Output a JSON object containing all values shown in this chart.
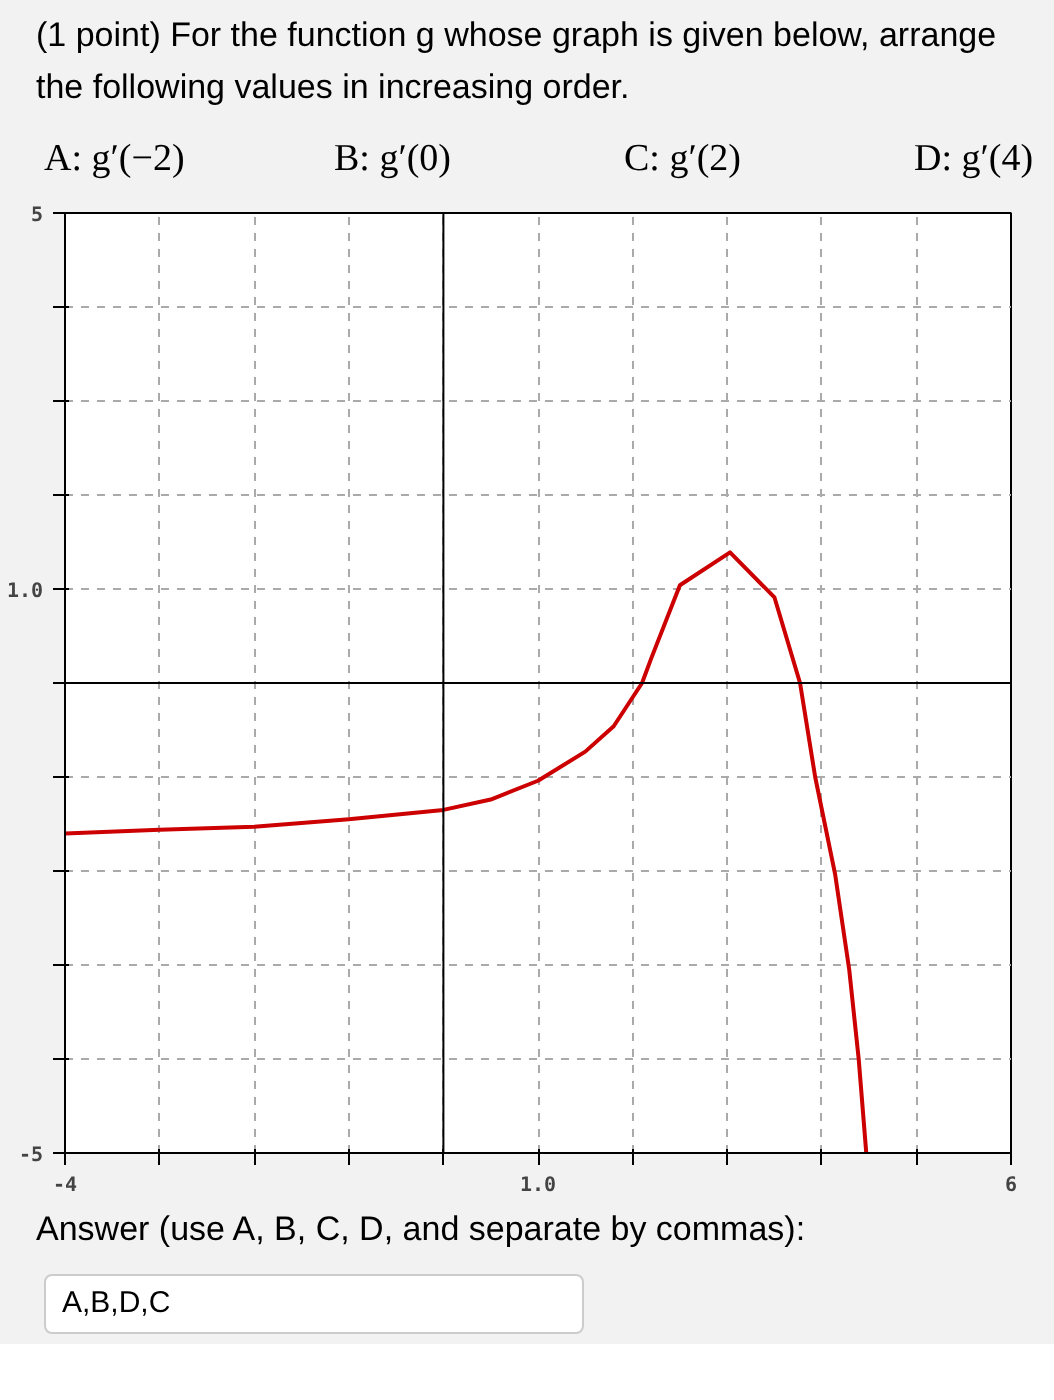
{
  "chart_data": {
    "type": "line",
    "title": "(1 point) For the function g whose graph is given below, arrange the following values in increasing order.",
    "annotations": [
      "A: g′(−2)",
      "B: g′(0)",
      "C: g′(2)",
      "D: g′(4)",
      "Answer (use A, B, C, D, and separate by commas):",
      "A,B,D,C"
    ],
    "xlim": [
      -4,
      6
    ],
    "ylim": [
      -5,
      5
    ],
    "xticks": [
      -4,
      {
        "value": -3,
        "label": null
      },
      {
        "value": -2,
        "label": null
      },
      {
        "value": -1,
        "label": null
      },
      {
        "value": 0,
        "label": null
      },
      {
        "value": 1,
        "label": "1.0"
      },
      {
        "value": 2,
        "label": null
      },
      {
        "value": 3,
        "label": null
      },
      {
        "value": 4,
        "label": null
      },
      {
        "value": 5,
        "label": null
      },
      6
    ],
    "yticks": [
      -5,
      {
        "value": -4,
        "label": null
      },
      {
        "value": -3,
        "label": null
      },
      {
        "value": -2,
        "label": null
      },
      {
        "value": -1,
        "label": null
      },
      {
        "value": 0,
        "label": null
      },
      {
        "value": 1,
        "label": "1.0"
      },
      {
        "value": 2,
        "label": null
      },
      {
        "value": 3,
        "label": null
      },
      {
        "value": 4,
        "label": null
      },
      5
    ],
    "grid": true,
    "line_style": "solid",
    "series": [
      {
        "color": "#cc0000",
        "x": [
          -4,
          -3,
          -2,
          -1,
          0,
          0.5,
          1,
          1.5,
          1.8,
          2.1,
          2.2,
          2.5,
          3.03,
          3.5,
          3.77,
          3.93,
          4.14,
          4.29,
          4.39,
          4.47
        ],
        "values": [
          -1.6,
          -1.56,
          -1.53,
          -1.45,
          -1.35,
          -1.24,
          -1.04,
          -0.73,
          -0.46,
          0,
          0.27,
          1.04,
          1.39,
          0.91,
          0,
          -1.0,
          -2.03,
          -3.05,
          -4.0,
          -5.0
        ]
      }
    ]
  }
}
